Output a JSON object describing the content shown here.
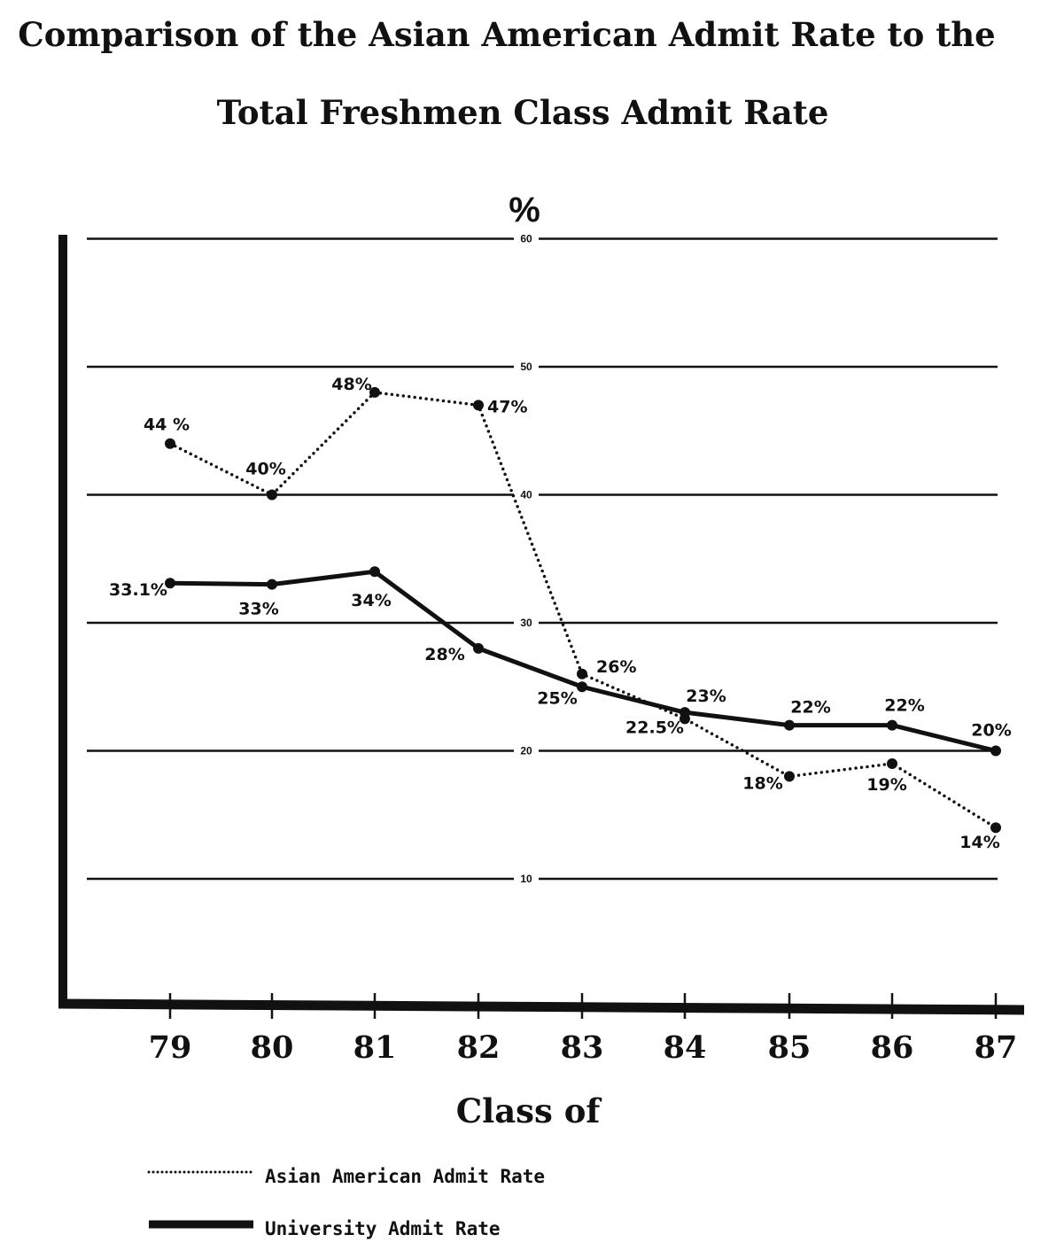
{
  "chart_data": {
    "type": "line",
    "title_lines": [
      "Comparison of the Asian American Admit Rate to the",
      "Total Freshmen Class Admit Rate"
    ],
    "xlabel": "Class of",
    "ylabel": "%",
    "categories": [
      "79",
      "80",
      "81",
      "82",
      "83",
      "84",
      "85",
      "86",
      "87"
    ],
    "yticks": [
      10,
      20,
      30,
      40,
      50,
      60
    ],
    "ylim": [
      0,
      60
    ],
    "grid": true,
    "legend_position": "bottom-left",
    "series": [
      {
        "name": "Asian American Admit Rate",
        "style": "dotted",
        "color": "#111111",
        "values": [
          44,
          40,
          48,
          47,
          26,
          22.5,
          18,
          19,
          14
        ],
        "labels": [
          "44 %",
          "40%",
          "48%",
          "47%",
          "26%",
          "22.5%",
          "18%",
          "19%",
          "14%"
        ]
      },
      {
        "name": "University Admit Rate",
        "style": "solid",
        "color": "#111111",
        "values": [
          33.1,
          33,
          34,
          28,
          25,
          23,
          22,
          22,
          20
        ],
        "labels": [
          "33.1%",
          "33%",
          "34%",
          "28%",
          "25%",
          "23%",
          "22%",
          "22%",
          "20%"
        ]
      }
    ]
  }
}
